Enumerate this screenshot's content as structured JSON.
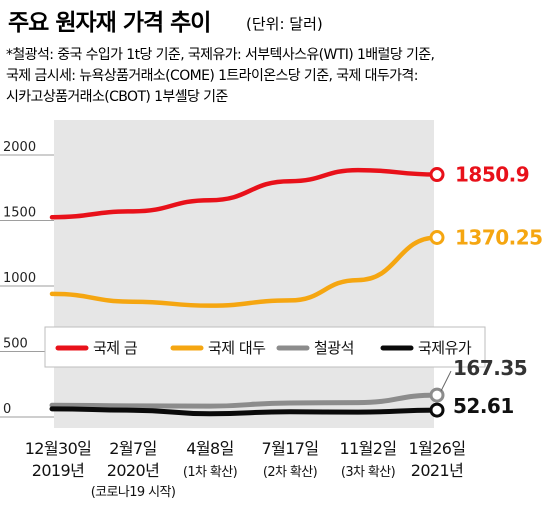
{
  "header": {
    "title": "주요 원자재 가격 추이",
    "unit": "(단위: 달러)",
    "notes": [
      "*철광석: 중국 수입가 1t당 기준, 국제유가: 서부텍사스유(WTI) 1배럴당 기준,",
      " 국제 금시세: 뉴욕상품거래소(COME) 1트라이온스당 기준, 국제 대두가격:",
      "시카고상품거래소(CBOT) 1부셸당 기준"
    ]
  },
  "colors": {
    "gold": "#e8111a",
    "soybean": "#f5a611",
    "iron_ore": "#8c8c8c",
    "oil": "#0a0a0a",
    "plot_bg": "#e6e6e6"
  },
  "chart_data": {
    "type": "line",
    "x": [
      "12월30일",
      "2월7일",
      "4월8일",
      "7월17일",
      "11월2일",
      "1월26일"
    ],
    "x_sub": [
      "2019년",
      "2020년",
      "(1차 확산)",
      "(2차 확산)",
      "(3차 확산)",
      "2021년"
    ],
    "x_sub2": [
      "",
      "(코로나19 시작)",
      "",
      "",
      "",
      ""
    ],
    "yticks": [
      "2000",
      "1500",
      "1000",
      "500",
      "0"
    ],
    "ylim": [
      0,
      2000
    ],
    "series": [
      {
        "name": "국제 금",
        "color_key": "gold",
        "values": [
          1525,
          1570,
          1655,
          1800,
          1885,
          1850.9
        ],
        "end_label": "1850.9"
      },
      {
        "name": "국제 대두",
        "color_key": "soybean",
        "values": [
          940,
          880,
          850,
          890,
          1045,
          1370.25
        ],
        "end_label": "1370.25"
      },
      {
        "name": "철광석",
        "color_key": "iron_ore",
        "values": [
          90,
          85,
          83,
          107,
          110,
          167.35
        ],
        "end_label": "167.35"
      },
      {
        "name": "국제유가",
        "color_key": "oil",
        "values": [
          62,
          52,
          25,
          40,
          37,
          52.61
        ],
        "end_label": "52.61"
      }
    ],
    "grid": false,
    "legend": "middle"
  }
}
